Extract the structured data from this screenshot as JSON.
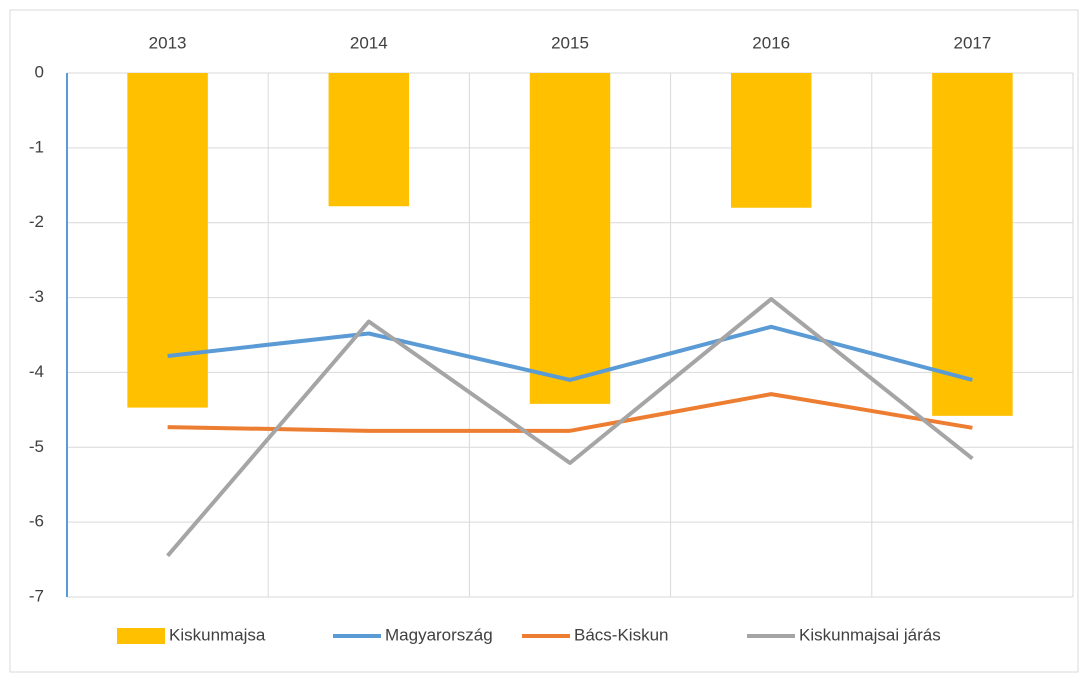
{
  "chart_data": {
    "type": "bar",
    "categories": [
      "2013",
      "2014",
      "2015",
      "2016",
      "2017"
    ],
    "series": [
      {
        "name": "Kiskunmajsa",
        "type": "bar",
        "color": "#ffc000",
        "values": [
          -4.47,
          -1.78,
          -4.42,
          -1.8,
          -4.58
        ]
      },
      {
        "name": "Magyarország",
        "type": "line",
        "color": "#5b9bd5",
        "values": [
          -3.78,
          -3.48,
          -4.1,
          -3.39,
          -4.1
        ]
      },
      {
        "name": "Bács-Kiskun",
        "type": "line",
        "color": "#ed7d31",
        "values": [
          -4.73,
          -4.78,
          -4.78,
          -4.29,
          -4.74
        ]
      },
      {
        "name": "Kiskunmajsai járás",
        "type": "line",
        "color": "#a5a5a5",
        "values": [
          -6.45,
          -3.32,
          -5.21,
          -3.02,
          -5.15
        ]
      }
    ],
    "ylim": [
      -7,
      0
    ],
    "yticks": [
      0,
      -1,
      -2,
      -3,
      -4,
      -5,
      -6,
      -7
    ],
    "grid": true,
    "legend": "bottom"
  }
}
